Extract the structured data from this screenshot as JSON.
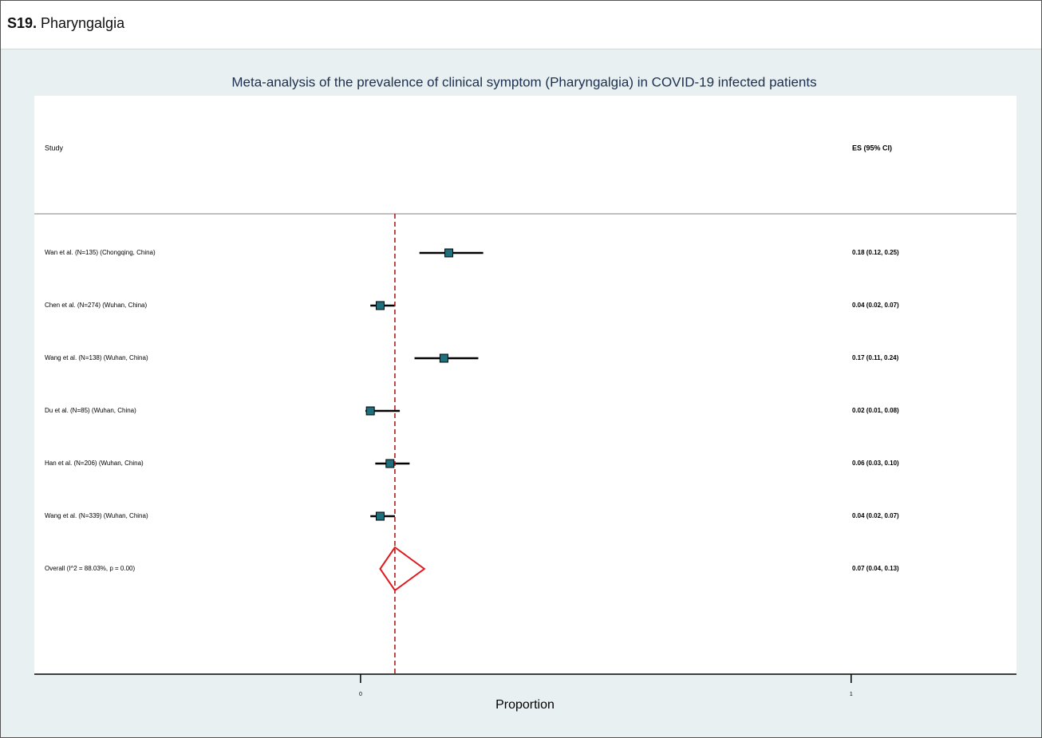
{
  "header": {
    "number": "S19.",
    "title": "Pharyngalgia"
  },
  "chart_data": {
    "type": "forest",
    "title": "Meta-analysis of the prevalence of clinical symptom (Pharyngalgia) in COVID-19 infected patients",
    "study_header": "Study",
    "es_header": "ES (95% CI)",
    "x_label": "Proportion",
    "categories": [
      "Wan et al. (N=135) (Chongqing, China)",
      "Chen et al. (N=274) (Wuhan, China)",
      "Wang et al. (N=138) (Wuhan, China)",
      "Du et al. (N=85) (Wuhan, China)",
      "Han et al. (N=206) (Wuhan, China)",
      "Wang et al. (N=339) (Wuhan, China)"
    ],
    "values": [
      0.18,
      0.04,
      0.17,
      0.02,
      0.06,
      0.04
    ],
    "lower": [
      0.12,
      0.02,
      0.11,
      0.01,
      0.03,
      0.02
    ],
    "upper": [
      0.25,
      0.07,
      0.24,
      0.08,
      0.1,
      0.07
    ],
    "value_labels": [
      "0.18 (0.12, 0.25)",
      "0.04 (0.02, 0.07)",
      "0.17 (0.11, 0.24)",
      "0.02 (0.01, 0.08)",
      "0.06 (0.03, 0.10)",
      "0.04 (0.02, 0.07)"
    ],
    "overall": {
      "label": "Overall  (I^2 = 88.03%, p = 0.00)",
      "value": 0.07,
      "lower": 0.04,
      "upper": 0.13,
      "value_label": "0.07 (0.04, 0.13)"
    },
    "xlim": [
      -0.665,
      1.337
    ],
    "xticks": [
      0,
      1
    ],
    "marker_color": "#1f6f7d",
    "overall_color": "#e0191f",
    "line_color": "#a01010"
  }
}
